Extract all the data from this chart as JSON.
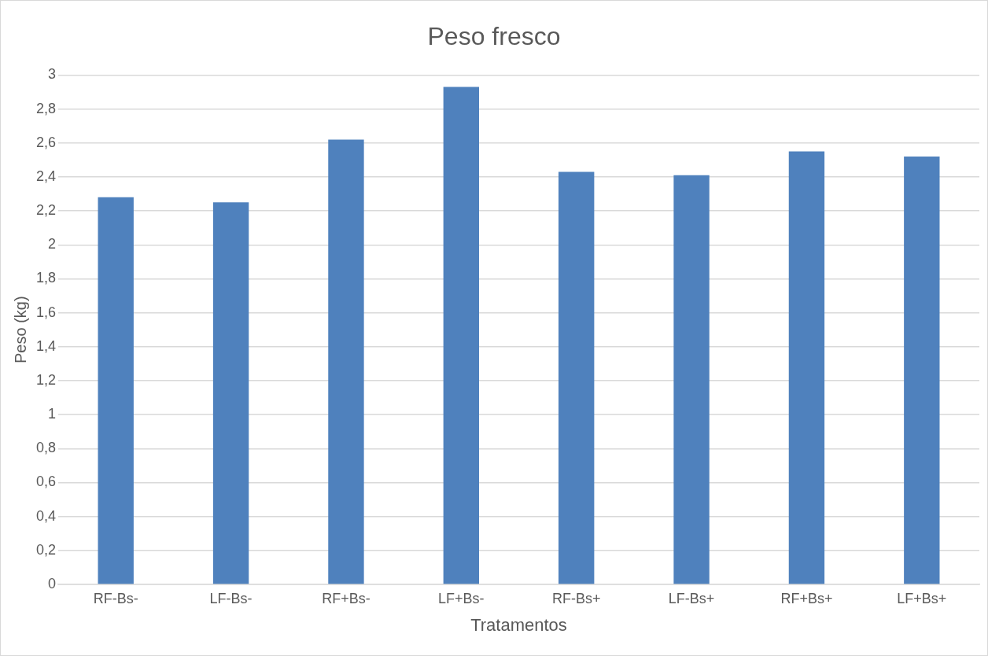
{
  "chart_data": {
    "type": "bar",
    "title": "Peso fresco",
    "xlabel": "Tratamentos",
    "ylabel": "Peso (kg)",
    "categories": [
      "RF-Bs-",
      "LF-Bs-",
      "RF+Bs-",
      "LF+Bs-",
      "RF-Bs+",
      "LF-Bs+",
      "RF+Bs+",
      "LF+Bs+"
    ],
    "values": [
      2.28,
      2.25,
      2.62,
      2.93,
      2.43,
      2.41,
      2.55,
      2.52
    ],
    "color": "#4f81bd",
    "ylim": [
      0,
      3
    ],
    "yticks": [
      0,
      {
        "value": 0.2,
        "label": "0,2"
      },
      {
        "value": 0.4,
        "label": "0,4"
      },
      {
        "value": 0.6,
        "label": "0,6"
      },
      {
        "value": 0.8,
        "label": "0,8"
      },
      1,
      {
        "value": 1.2,
        "label": "1,2"
      },
      {
        "value": 1.4,
        "label": "1,4"
      },
      {
        "value": 1.6,
        "label": "1,6"
      },
      {
        "value": 1.8,
        "label": "1,8"
      },
      2,
      {
        "value": 2.2,
        "label": "2,2"
      },
      {
        "value": 2.4,
        "label": "2,4"
      },
      {
        "value": 2.6,
        "label": "2,6"
      },
      {
        "value": 2.8,
        "label": "2,8"
      },
      3
    ],
    "grid": "y"
  }
}
